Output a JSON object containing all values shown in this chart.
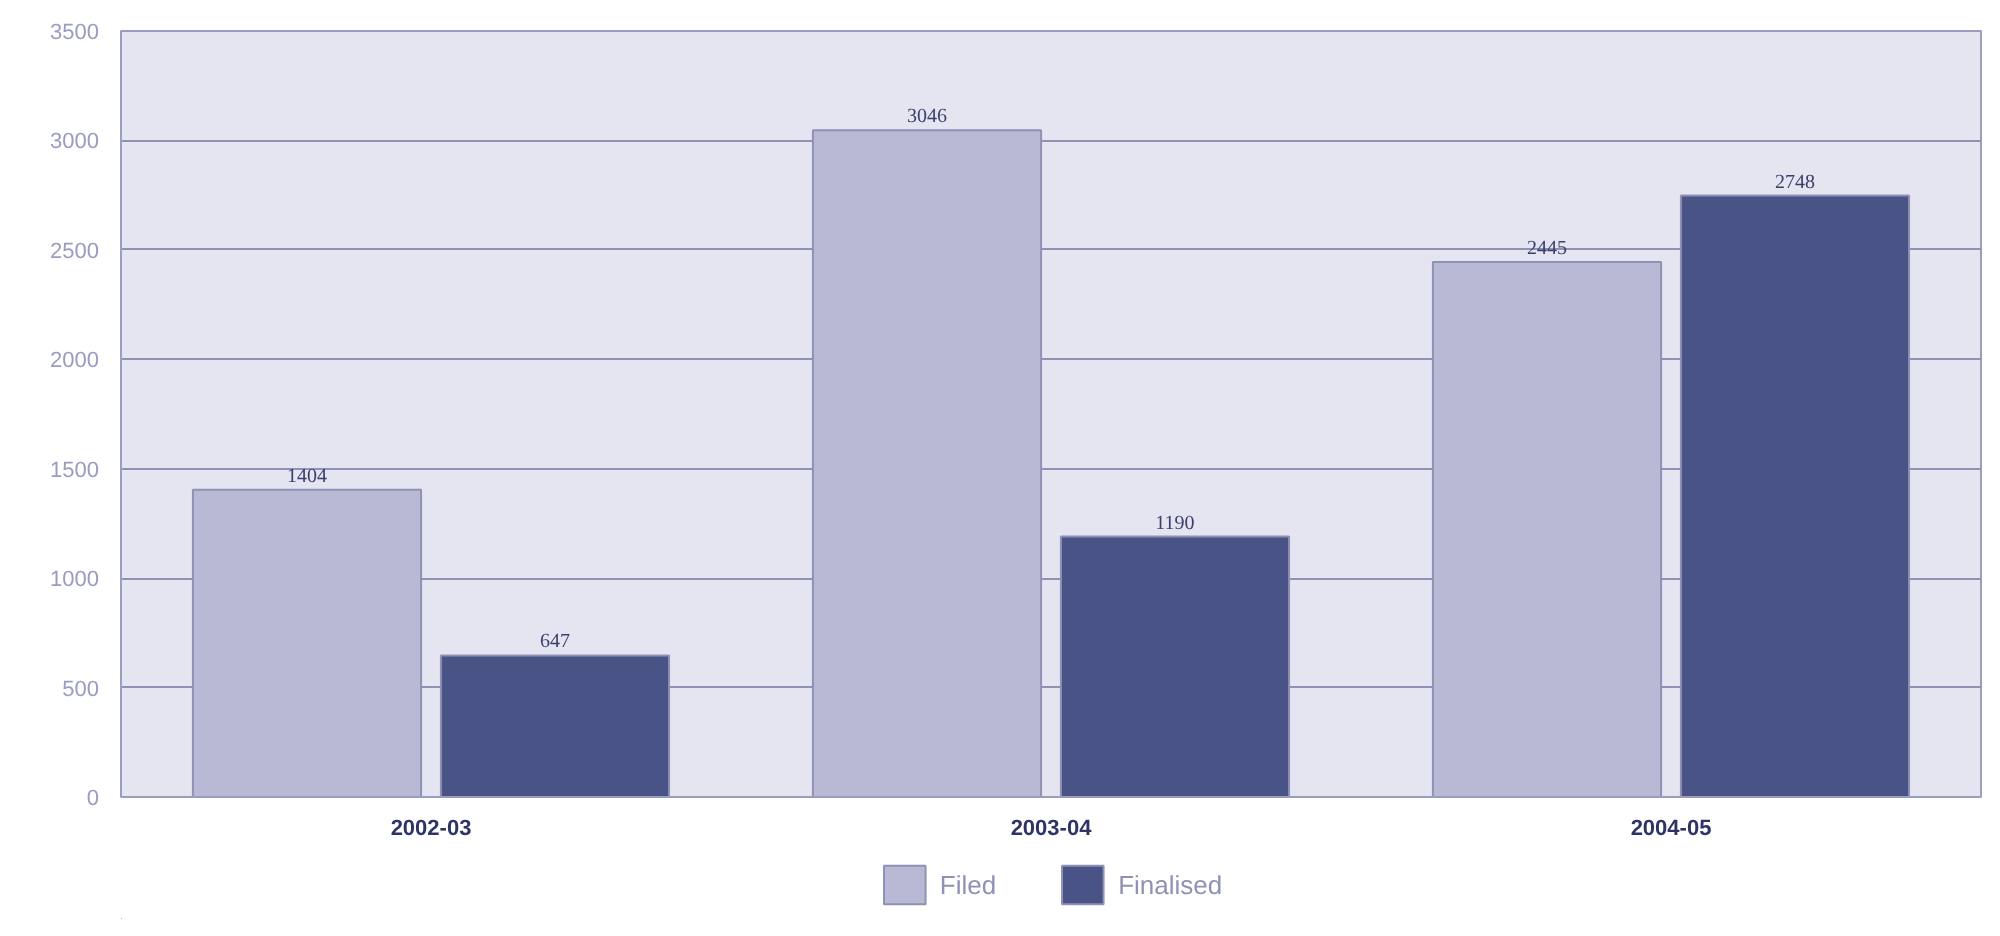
{
  "chart_data": {
    "type": "bar",
    "categories": [
      "2002-03",
      "2003-04",
      "2004-05"
    ],
    "series": [
      {
        "name": "Filed",
        "color": "#b8b9d4",
        "values": [
          1404,
          3046,
          2445
        ]
      },
      {
        "name": "Finalised",
        "color": "#4a5386",
        "values": [
          647,
          1190,
          2748
        ]
      }
    ],
    "ylim": [
      0,
      3500
    ],
    "yticks": [
      0,
      500,
      1000,
      1500,
      2000,
      2500,
      3000,
      3500
    ],
    "grid": "y",
    "legend": "bottom",
    "data_labels": true
  }
}
